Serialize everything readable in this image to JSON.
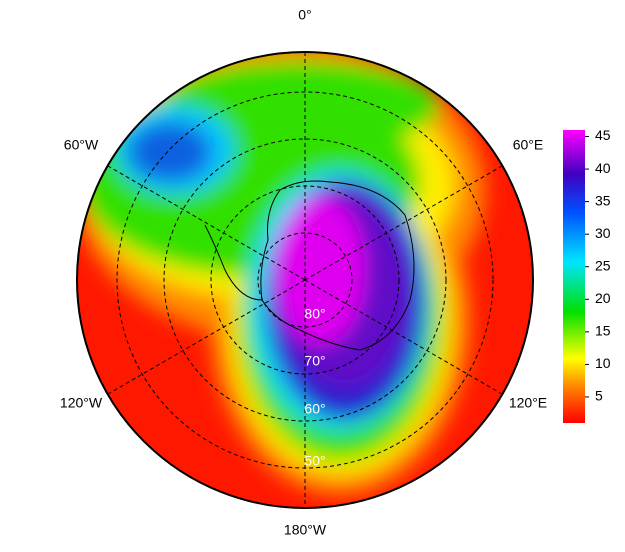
{
  "map": {
    "longitude_labels": [
      "0°",
      "60°E",
      "120°E",
      "180°W",
      "120°W",
      "60°W"
    ],
    "latitude_labels": [
      "80°",
      "70°",
      "60°",
      "50°"
    ]
  },
  "colorbar": {
    "lim": [
      1,
      46
    ],
    "ticks": [
      5,
      10,
      15,
      20,
      25,
      30,
      35,
      40,
      45
    ]
  }
}
